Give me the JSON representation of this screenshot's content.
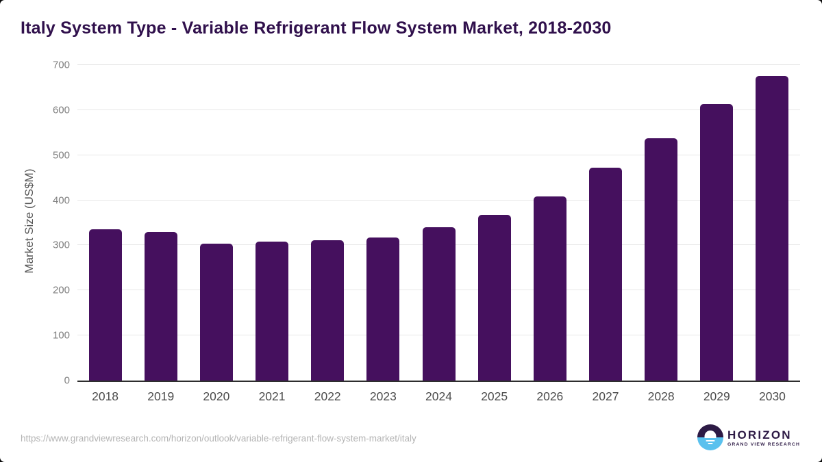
{
  "header": {
    "title": "Italy System Type - Variable Refrigerant Flow System Market, 2018-2030"
  },
  "chart_data": {
    "type": "bar",
    "title": "Italy System Type - Variable Refrigerant Flow System Market, 2018-2030",
    "categories": [
      "2018",
      "2019",
      "2020",
      "2021",
      "2022",
      "2023",
      "2024",
      "2025",
      "2026",
      "2027",
      "2028",
      "2029",
      "2030"
    ],
    "values": [
      336,
      330,
      304,
      308,
      311,
      318,
      340,
      367,
      408,
      472,
      537,
      613,
      676
    ],
    "xlabel": "",
    "ylabel": "Market Size (US$M)",
    "ylim": [
      0,
      700
    ],
    "yticks": [
      0,
      100,
      200,
      300,
      400,
      500,
      600,
      700
    ],
    "grid": "horizontal",
    "legend": "none",
    "bar_color": "#45105e"
  },
  "footer": {
    "source_url": "https://www.grandviewresearch.com/horizon/outlook/variable-refrigerant-flow-system-market/italy",
    "logo": {
      "name": "HORIZON",
      "subtitle": "GRAND VIEW RESEARCH"
    }
  },
  "colors": {
    "title_text": "#30104c",
    "bar": "#45105e",
    "y_axis_title": "#555555",
    "y_tick_label": "#7f7f7f",
    "x_tick_label": "#4c4c4c",
    "gridline": "#e7e7e7",
    "axis_line": "#2e2e2e",
    "url_text": "#b4b4b4",
    "logo_purple": "#2d1a45",
    "logo_blue": "#5ac1ee"
  }
}
